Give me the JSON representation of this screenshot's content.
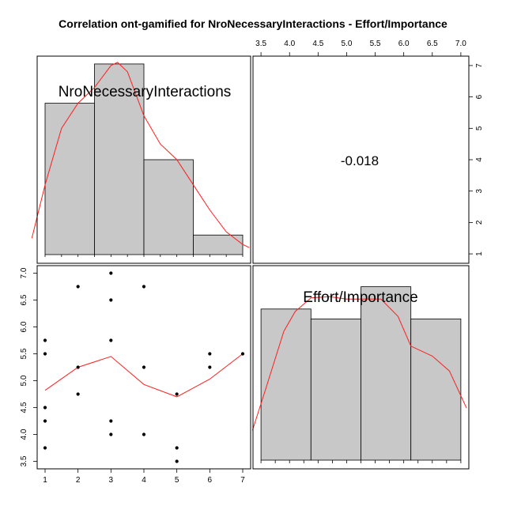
{
  "title": "Correlation ont-gamified for NroNecessaryInteractions - Effort/Importance",
  "chart_data": {
    "type": "scatter",
    "variables": [
      "NroNecessaryInteractions",
      "Effort/Importance"
    ],
    "correlation_label": "-0.018",
    "x_ticks": [
      1,
      2,
      3,
      4,
      5,
      6,
      7
    ],
    "y_ticks": [
      3.5,
      4.0,
      4.5,
      5.0,
      5.5,
      6.0,
      6.5,
      7.0
    ],
    "y_tick_labels": [
      "3.5",
      "4.0",
      "4.5",
      "5.0",
      "5.5",
      "6.0",
      "6.5",
      "7.0"
    ],
    "top_ticks": [
      3.5,
      4.0,
      4.5,
      5.0,
      5.5,
      6.0,
      6.5,
      7.0
    ],
    "top_tick_labels": [
      "3.5",
      "4.0",
      "4.5",
      "5.0",
      "5.5",
      "6.0",
      "6.5",
      "7.0"
    ],
    "right_ticks": [
      1,
      2,
      3,
      4,
      5,
      6,
      7
    ],
    "points": [
      [
        1,
        5.75
      ],
      [
        1,
        5.5
      ],
      [
        1,
        4.5
      ],
      [
        1,
        4.25
      ],
      [
        1,
        3.75
      ],
      [
        2,
        6.75
      ],
      [
        2,
        5.25
      ],
      [
        2,
        4.75
      ],
      [
        3,
        7.0
      ],
      [
        3,
        6.5
      ],
      [
        3,
        5.75
      ],
      [
        3,
        4.25
      ],
      [
        3,
        4.0
      ],
      [
        4,
        6.75
      ],
      [
        4,
        5.25
      ],
      [
        4,
        4.0
      ],
      [
        5,
        4.75
      ],
      [
        5,
        3.75
      ],
      [
        5,
        3.5
      ],
      [
        6,
        5.5
      ],
      [
        6,
        5.25
      ],
      [
        7,
        5.5
      ]
    ],
    "smooth": [
      [
        1,
        4.82
      ],
      [
        2,
        5.25
      ],
      [
        3,
        5.45
      ],
      [
        4,
        4.93
      ],
      [
        5,
        4.7
      ],
      [
        6,
        5.03
      ],
      [
        7,
        5.5
      ]
    ],
    "hist_x": {
      "breaks": [
        1,
        2.5,
        4,
        5.5,
        7
      ],
      "counts": [
        5.8,
        7.05,
        4.0,
        1.6
      ],
      "count_range": [
        0.7,
        7.3
      ],
      "density": [
        [
          0.6,
          1.5
        ],
        [
          1.0,
          3.2
        ],
        [
          1.5,
          5.0
        ],
        [
          2.0,
          5.8
        ],
        [
          2.5,
          6.3
        ],
        [
          3.0,
          7.0
        ],
        [
          3.2,
          7.1
        ],
        [
          3.5,
          6.8
        ],
        [
          4.0,
          5.4
        ],
        [
          4.5,
          4.5
        ],
        [
          5.0,
          4.0
        ],
        [
          5.5,
          3.2
        ],
        [
          6.0,
          2.4
        ],
        [
          6.5,
          1.7
        ],
        [
          7.0,
          1.3
        ],
        [
          7.2,
          1.2
        ]
      ]
    },
    "hist_y": {
      "breaks": [
        3.5,
        4.375,
        5.25,
        6.125,
        7.0
      ],
      "counts": [
        6.1,
        5.7,
        7.0,
        5.7
      ],
      "count_range": [
        0.0,
        7.85
      ],
      "density": [
        [
          3.35,
          1.2
        ],
        [
          3.6,
          3.0
        ],
        [
          3.9,
          5.2
        ],
        [
          4.1,
          6.0
        ],
        [
          4.375,
          6.55
        ],
        [
          4.7,
          6.6
        ],
        [
          5.0,
          6.5
        ],
        [
          5.25,
          6.5
        ],
        [
          5.6,
          6.5
        ],
        [
          5.9,
          5.8
        ],
        [
          6.125,
          4.6
        ],
        [
          6.5,
          4.2
        ],
        [
          6.8,
          3.6
        ],
        [
          7.1,
          2.1
        ]
      ]
    }
  }
}
